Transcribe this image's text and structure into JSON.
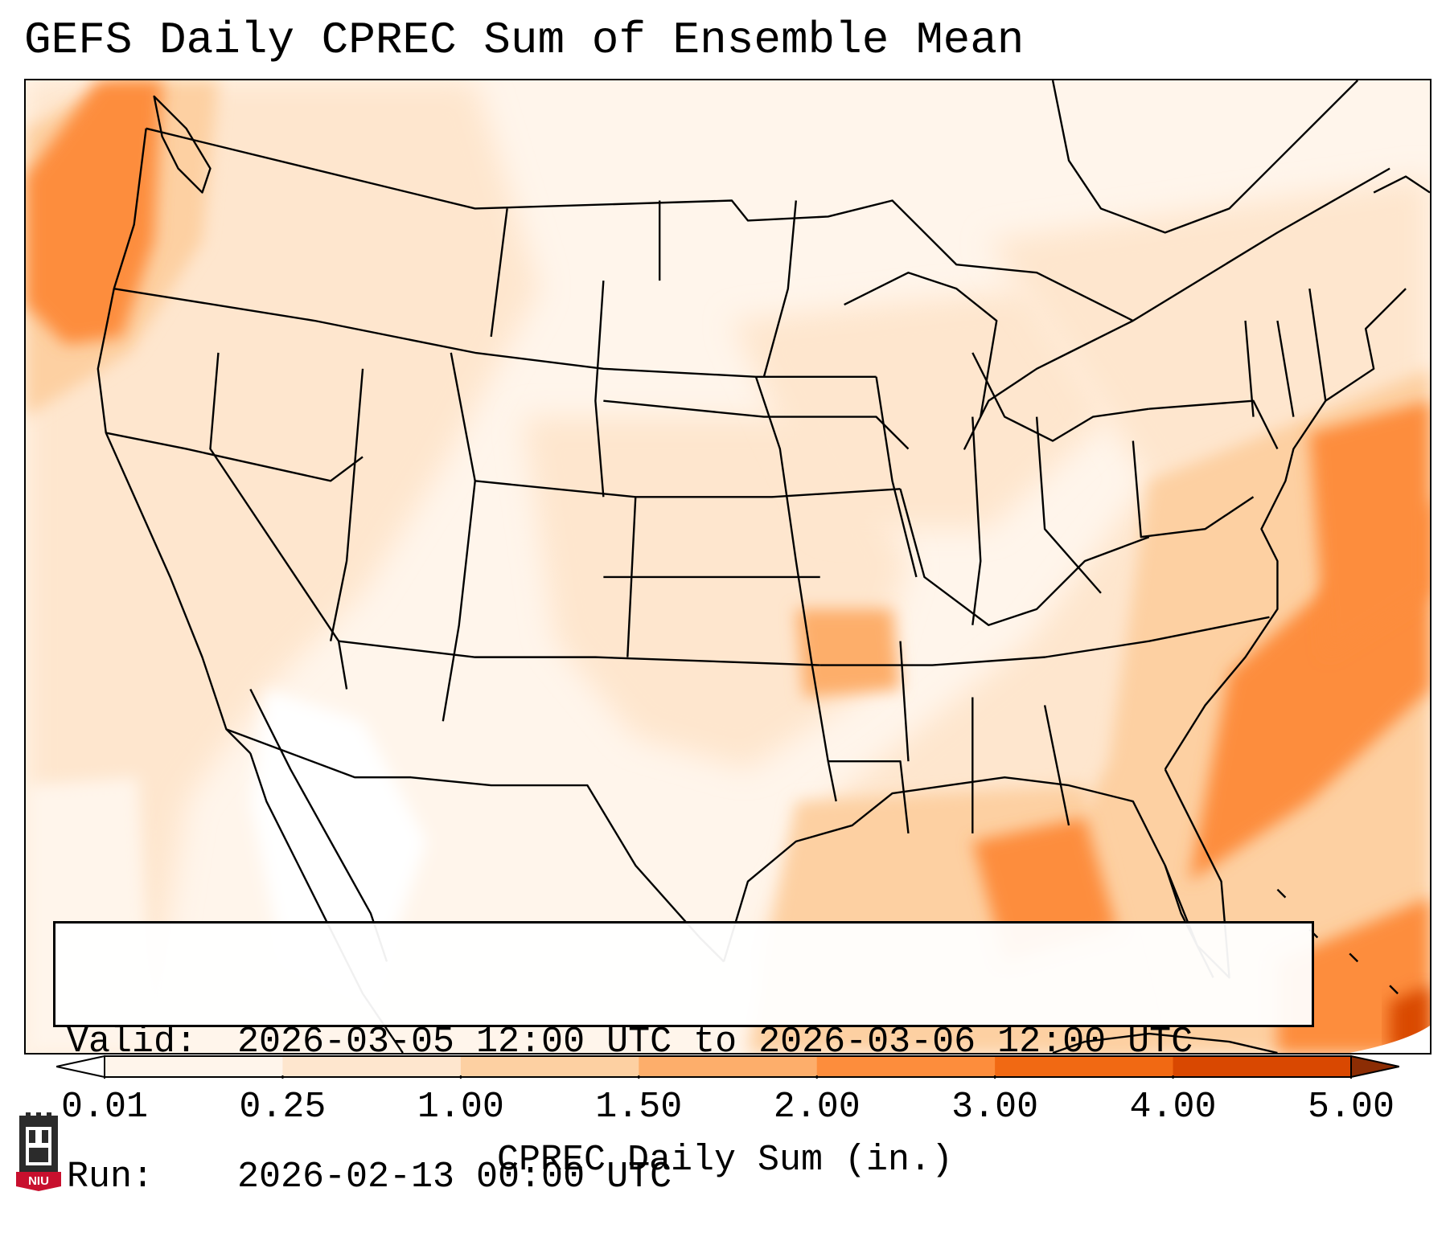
{
  "title": "GEFS Daily CPREC Sum of Ensemble Mean",
  "info": {
    "valid_label": "Valid:",
    "valid_value": "2026-03-05 12:00 UTC to 2026-03-06 12:00 UTC",
    "run_label": "Run:",
    "run_value": "2026-02-13 00:00 UTC"
  },
  "colorbar": {
    "label": "CPREC Daily Sum (in.)",
    "ticks": [
      "0.01",
      "0.25",
      "1.00",
      "1.50",
      "2.00",
      "3.00",
      "4.00",
      "5.00"
    ],
    "colors": [
      "#fff5eb",
      "#fee6ce",
      "#fdd0a2",
      "#fdae6b",
      "#fd8d3c",
      "#f16913",
      "#d94801",
      "#8c2d04"
    ]
  },
  "logo": {
    "text": "NIU",
    "icon": "niu-castle-logo-icon"
  }
}
